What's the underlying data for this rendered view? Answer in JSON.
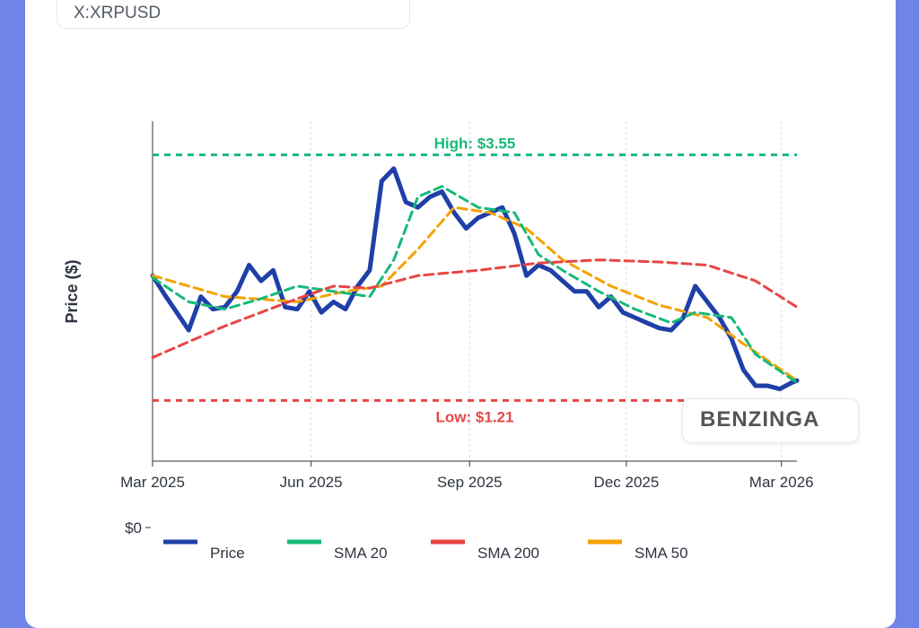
{
  "symbol": "X:XRPUSD",
  "brand": "BENZINGA",
  "colors": {
    "price": "#1f3fa8",
    "sma20": "#17b978",
    "sma200": "#e84545",
    "sma50": "#f5a100",
    "grid": "#dddddd"
  },
  "chart_data": {
    "type": "line",
    "title": "",
    "xlabel": "",
    "ylabel": "Price ($)",
    "x_range": [
      "2025-03-01",
      "2026-03-10"
    ],
    "y_range": [
      0,
      4.0
    ],
    "x_ticks": [
      {
        "date": "2025-03-01",
        "label": "Mar 2025"
      },
      {
        "date": "2025-06-01",
        "label": "Jun 2025"
      },
      {
        "date": "2025-09-01",
        "label": "Sep 2025"
      },
      {
        "date": "2025-12-01",
        "label": "Dec 2025"
      },
      {
        "date": "2026-03-01",
        "label": "Mar 2026"
      }
    ],
    "y_ticks": [
      {
        "value": 0,
        "label": "$0"
      }
    ],
    "grid": true,
    "legend_position": "bottom",
    "annotations": [
      {
        "label": "High: $3.55",
        "value": 3.55,
        "color": "#17b978"
      },
      {
        "label": "Low: $1.21",
        "value": 1.21,
        "color": "#e84545"
      }
    ],
    "series": [
      {
        "name": "Price",
        "color": "#1f3fa8",
        "style": "solid",
        "width": 5,
        "x": [
          "2025-03-01",
          "2025-03-08",
          "2025-03-15",
          "2025-03-22",
          "2025-03-29",
          "2025-04-05",
          "2025-04-12",
          "2025-04-19",
          "2025-04-26",
          "2025-05-03",
          "2025-05-10",
          "2025-05-17",
          "2025-05-24",
          "2025-05-31",
          "2025-06-07",
          "2025-06-14",
          "2025-06-21",
          "2025-06-28",
          "2025-07-05",
          "2025-07-12",
          "2025-07-19",
          "2025-07-26",
          "2025-08-02",
          "2025-08-09",
          "2025-08-16",
          "2025-08-23",
          "2025-08-30",
          "2025-09-06",
          "2025-09-13",
          "2025-09-20",
          "2025-09-27",
          "2025-10-04",
          "2025-10-11",
          "2025-10-18",
          "2025-10-25",
          "2025-11-01",
          "2025-11-08",
          "2025-11-15",
          "2025-11-22",
          "2025-11-29",
          "2025-12-06",
          "2025-12-13",
          "2025-12-20",
          "2025-12-27",
          "2026-01-03",
          "2026-01-10",
          "2026-01-17",
          "2026-01-24",
          "2026-01-31",
          "2026-02-07",
          "2026-02-14",
          "2026-02-21",
          "2026-02-28",
          "2026-03-07",
          "2026-03-10"
        ],
        "y": [
          2.4,
          2.22,
          2.05,
          1.88,
          2.2,
          2.08,
          2.1,
          2.25,
          2.5,
          2.35,
          2.45,
          2.1,
          2.08,
          2.25,
          2.05,
          2.15,
          2.08,
          2.3,
          2.45,
          3.3,
          3.42,
          3.1,
          3.05,
          3.15,
          3.2,
          3.0,
          2.85,
          2.95,
          3.0,
          3.05,
          2.8,
          2.4,
          2.5,
          2.45,
          2.35,
          2.25,
          2.25,
          2.1,
          2.2,
          2.05,
          2.0,
          1.95,
          1.9,
          1.88,
          2.0,
          2.3,
          2.15,
          2.0,
          1.8,
          1.5,
          1.35,
          1.35,
          1.32,
          1.38,
          1.4
        ]
      },
      {
        "name": "SMA 20",
        "color": "#17b978",
        "style": "dashed",
        "width": 3,
        "x": [
          "2025-03-01",
          "2025-03-22",
          "2025-04-12",
          "2025-05-03",
          "2025-05-24",
          "2025-06-14",
          "2025-07-05",
          "2025-07-19",
          "2025-08-02",
          "2025-08-16",
          "2025-09-06",
          "2025-09-27",
          "2025-10-11",
          "2025-10-25",
          "2025-11-15",
          "2025-12-06",
          "2025-12-27",
          "2026-01-10",
          "2026-01-31",
          "2026-02-14",
          "2026-03-10"
        ],
        "y": [
          2.38,
          2.15,
          2.08,
          2.18,
          2.3,
          2.25,
          2.2,
          2.55,
          3.15,
          3.25,
          3.05,
          3.0,
          2.6,
          2.45,
          2.25,
          2.08,
          1.95,
          2.05,
          2.0,
          1.65,
          1.38
        ]
      },
      {
        "name": "SMA 200",
        "color": "#e84545",
        "style": "dashed",
        "width": 3,
        "x": [
          "2025-03-01",
          "2025-04-12",
          "2025-05-24",
          "2025-06-14",
          "2025-07-05",
          "2025-08-02",
          "2025-09-06",
          "2025-10-11",
          "2025-11-15",
          "2025-12-20",
          "2026-01-17",
          "2026-02-14",
          "2026-03-10"
        ],
        "y": [
          1.62,
          1.92,
          2.18,
          2.3,
          2.28,
          2.4,
          2.45,
          2.52,
          2.55,
          2.53,
          2.5,
          2.35,
          2.1
        ]
      },
      {
        "name": "SMA 50",
        "color": "#f5a100",
        "style": "dashed",
        "width": 3,
        "x": [
          "2025-03-01",
          "2025-04-12",
          "2025-05-24",
          "2025-06-21",
          "2025-07-12",
          "2025-08-02",
          "2025-08-23",
          "2025-09-13",
          "2025-10-04",
          "2025-10-25",
          "2025-11-22",
          "2025-12-20",
          "2026-01-17",
          "2026-02-07",
          "2026-03-10"
        ],
        "y": [
          2.4,
          2.2,
          2.15,
          2.25,
          2.3,
          2.65,
          3.05,
          3.0,
          2.85,
          2.55,
          2.3,
          2.12,
          2.0,
          1.75,
          1.4
        ]
      }
    ]
  }
}
